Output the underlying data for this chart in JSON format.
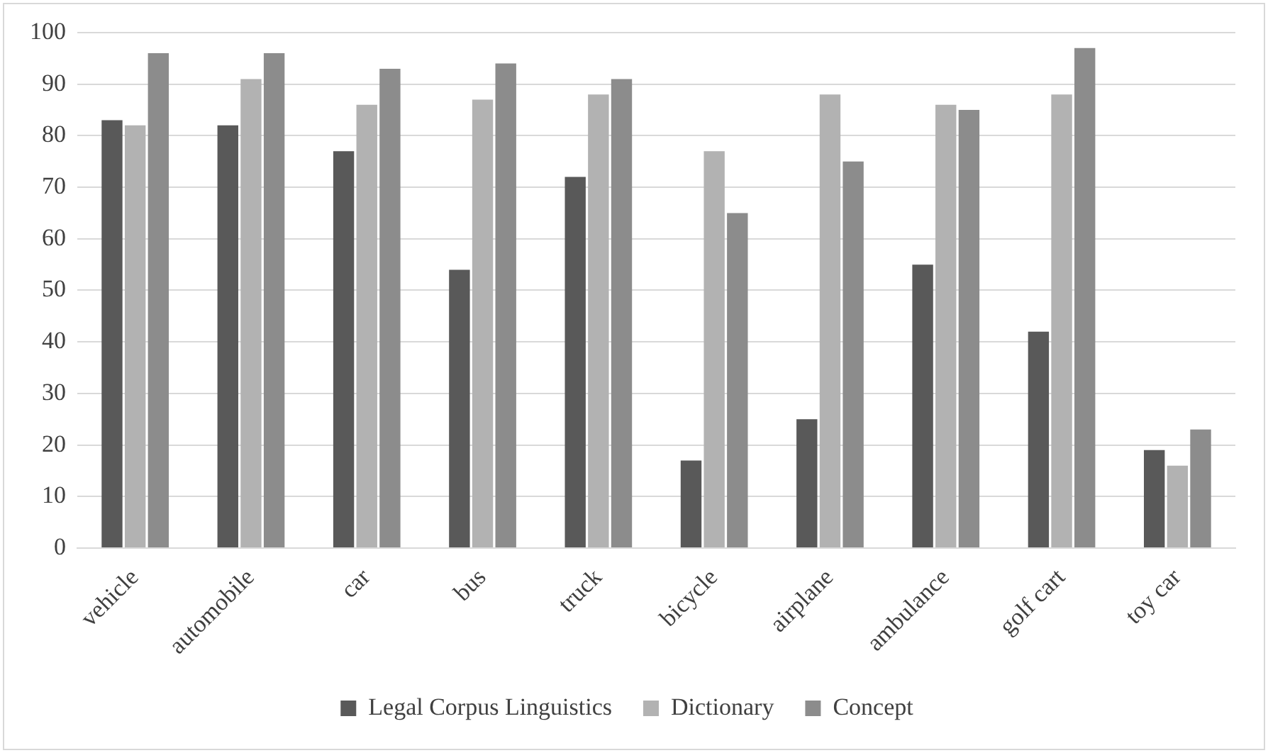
{
  "chart_data": {
    "type": "bar",
    "categories": [
      "vehicle",
      "automobile",
      "car",
      "bus",
      "truck",
      "bicycle",
      "airplane",
      "ambulance",
      "golf cart",
      "toy car"
    ],
    "series": [
      {
        "name": "Legal Corpus Linguistics",
        "color": "#595959",
        "values": [
          83,
          82,
          77,
          54,
          72,
          17,
          25,
          55,
          42,
          19
        ]
      },
      {
        "name": "Dictionary",
        "color": "#b2b2b2",
        "values": [
          82,
          91,
          86,
          87,
          88,
          77,
          88,
          86,
          88,
          16
        ]
      },
      {
        "name": "Concept",
        "color": "#8c8c8c",
        "values": [
          96,
          96,
          93,
          94,
          91,
          65,
          75,
          85,
          97,
          23
        ]
      }
    ],
    "ylim": [
      0,
      100
    ],
    "yticks": [
      0,
      10,
      20,
      30,
      40,
      50,
      60,
      70,
      80,
      90,
      100
    ],
    "grid": "y",
    "legend": "bottom"
  }
}
